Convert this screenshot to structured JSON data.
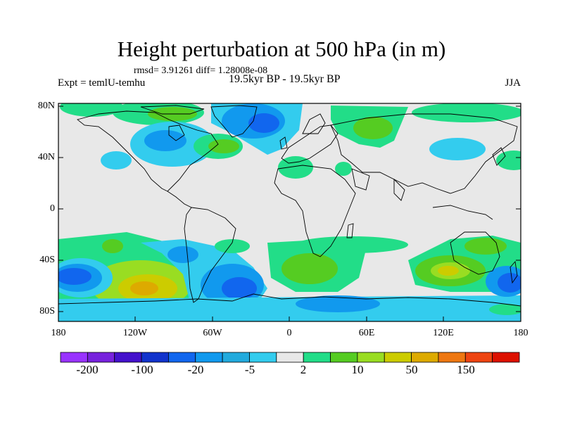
{
  "title": "Height perturbation at 500 hPa (in m)",
  "stats": "rmsd= 3.91261 diff= 1.28008e-08",
  "expt": "Expt = temlU-temhu",
  "period": "19.5kyr BP - 19.5kyr BP",
  "season": "JJA",
  "lat_labels": [
    "80N",
    "40N",
    "0",
    "40S",
    "80S"
  ],
  "lon_labels": [
    "180",
    "120W",
    "60W",
    "0",
    "60E",
    "120E",
    "180"
  ],
  "colorbar": {
    "colors": [
      "#9933ff",
      "#7722dd",
      "#4411cc",
      "#1133cc",
      "#1166ee",
      "#1199ee",
      "#22aadd",
      "#33ccee",
      "#e8e8e8",
      "#22dd88",
      "#55cc22",
      "#99dd22",
      "#cccc00",
      "#ddaa00",
      "#ee7711",
      "#ee4411",
      "#dd1100"
    ],
    "labels": [
      "-200",
      "-100",
      "-20",
      "-5",
      "2",
      "10",
      "50",
      "150"
    ]
  },
  "colors": {
    "background": "#e8e8e8",
    "light_blue": "#33ccee",
    "mid_blue": "#22aadd",
    "blue": "#1166ee",
    "green": "#22dd88",
    "lime": "#55cc22",
    "yellow": "#cccc00",
    "orange": "#ddaa00"
  }
}
